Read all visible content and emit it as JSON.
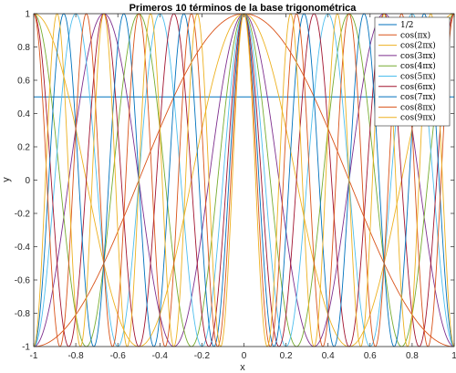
{
  "chart_data": {
    "type": "line",
    "title": "Primeros 10 términos de la base trigonométrica",
    "xlabel": "x",
    "ylabel": "y",
    "xlim": [
      -1,
      1
    ],
    "ylim": [
      -1,
      1
    ],
    "x_ticks": [
      -1,
      -0.8,
      -0.6,
      -0.4,
      -0.2,
      0,
      0.2,
      0.4,
      0.6,
      0.8,
      1
    ],
    "x_tick_labels": [
      "-1",
      "-0.8",
      "-0.6",
      "-0.4",
      "-0.2",
      "0",
      "0.2",
      "0.4",
      "0.6",
      "0.8",
      "1"
    ],
    "y_ticks": [
      -1,
      -0.8,
      -0.6,
      -0.4,
      -0.2,
      0,
      0.2,
      0.4,
      0.6,
      0.8,
      1
    ],
    "y_tick_labels": [
      "-1",
      "-0.8",
      "-0.6",
      "-0.4",
      "-0.2",
      "0",
      "0.2",
      "0.4",
      "0.6",
      "0.8",
      "1"
    ],
    "grid": false,
    "legend_position": "top-right",
    "series": [
      {
        "name": "1/2",
        "k": 0,
        "constant": 0.5,
        "color": "#0072BD"
      },
      {
        "name": "cos(πx)",
        "k": 1,
        "color": "#D95319"
      },
      {
        "name": "cos(2πx)",
        "k": 2,
        "color": "#EDB120"
      },
      {
        "name": "cos(3πx)",
        "k": 3,
        "color": "#7E2F8E"
      },
      {
        "name": "cos(4πx)",
        "k": 4,
        "color": "#77AC30"
      },
      {
        "name": "cos(5πx)",
        "k": 5,
        "color": "#4DBEEE"
      },
      {
        "name": "cos(6πx)",
        "k": 6,
        "color": "#A2142F"
      },
      {
        "name": "cos(7πx)",
        "k": 7,
        "color": "#0072BD"
      },
      {
        "name": "cos(8πx)",
        "k": 8,
        "color": "#D95319"
      },
      {
        "name": "cos(9πx)",
        "k": 9,
        "color": "#EDB120"
      }
    ]
  }
}
